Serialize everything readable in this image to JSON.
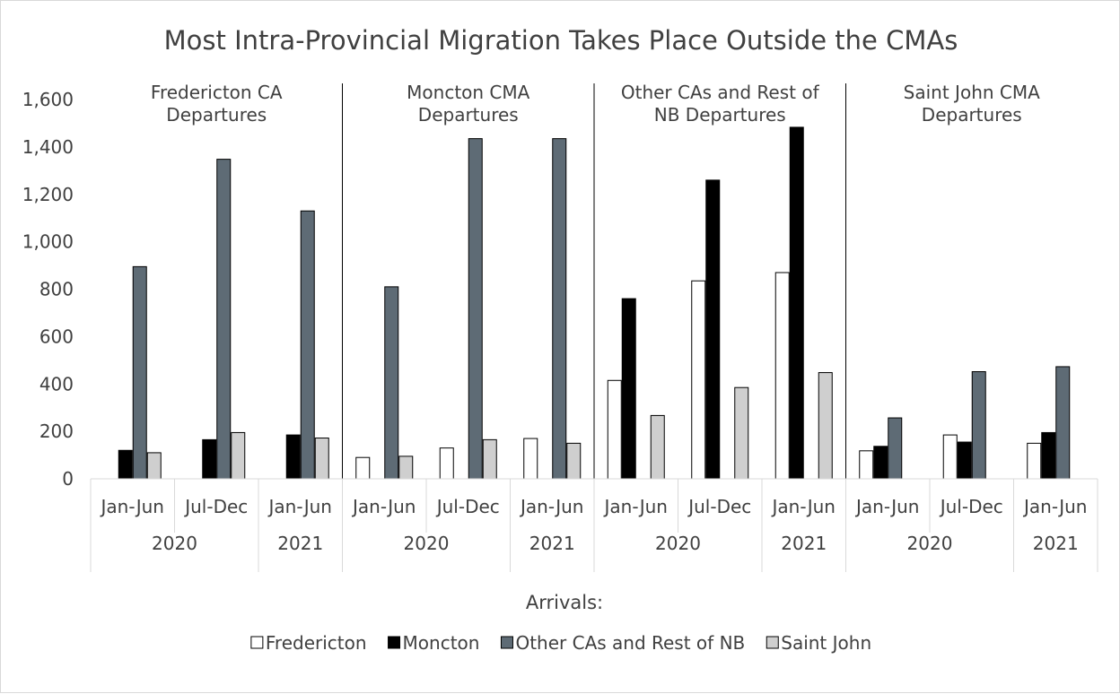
{
  "chart_data": {
    "type": "bar",
    "title": "Most Intra-Provincial Migration Takes Place Outside the CMAs",
    "xlabel": "Arrivals:",
    "ylabel": "",
    "ylim": [
      0,
      1600
    ],
    "yticks": [
      "0",
      "200",
      "400",
      "600",
      "800",
      "1,000",
      "1,200",
      "1,400",
      "1,600"
    ],
    "grid": false,
    "legend_position": "bottom",
    "series_colors": [
      "#ffffff",
      "#000000",
      "#5e6b75",
      "#cfcfcf"
    ],
    "series": [
      {
        "name": "Fredericton"
      },
      {
        "name": "Moncton"
      },
      {
        "name": "Other CAs and Rest of NB"
      },
      {
        "name": "Saint John"
      }
    ],
    "groups": [
      {
        "label_lines": [
          "Fredericton CA",
          "Departures"
        ],
        "years": [
          {
            "label": "2020",
            "span": 2
          },
          {
            "label": "2021",
            "span": 1
          }
        ],
        "periods": [
          {
            "label": "Jan-Jun",
            "values": [
              null,
              120,
              895,
              110
            ]
          },
          {
            "label": "Jul-Dec",
            "values": [
              null,
              165,
              1348,
              195
            ]
          },
          {
            "label": "Jan-Jun",
            "values": [
              null,
              185,
              1130,
              172
            ]
          }
        ]
      },
      {
        "label_lines": [
          "Moncton CMA",
          "Departures"
        ],
        "years": [
          {
            "label": "2020",
            "span": 2
          },
          {
            "label": "2021",
            "span": 1
          }
        ],
        "periods": [
          {
            "label": "Jan-Jun",
            "values": [
              90,
              null,
              810,
              95
            ]
          },
          {
            "label": "Jul-Dec",
            "values": [
              130,
              null,
              1435,
              165
            ]
          },
          {
            "label": "Jan-Jun",
            "values": [
              170,
              null,
              1435,
              150
            ]
          }
        ]
      },
      {
        "label_lines": [
          "Other CAs and Rest of",
          "NB Departures"
        ],
        "years": [
          {
            "label": "2020",
            "span": 2
          },
          {
            "label": "2021",
            "span": 1
          }
        ],
        "periods": [
          {
            "label": "Jan-Jun",
            "values": [
              415,
              760,
              null,
              267
            ]
          },
          {
            "label": "Jul-Dec",
            "values": [
              835,
              1260,
              null,
              385
            ]
          },
          {
            "label": "Jan-Jun",
            "values": [
              870,
              1483,
              null,
              448
            ]
          }
        ]
      },
      {
        "label_lines": [
          "Saint John CMA",
          "Departures"
        ],
        "years": [
          {
            "label": "2020",
            "span": 2
          },
          {
            "label": "2021",
            "span": 1
          }
        ],
        "periods": [
          {
            "label": "Jan-Jun",
            "values": [
              118,
              137,
              257,
              null
            ]
          },
          {
            "label": "Jul-Dec",
            "values": [
              185,
              155,
              452,
              null
            ]
          },
          {
            "label": "Jan-Jun",
            "values": [
              150,
              195,
              473,
              null
            ]
          }
        ]
      }
    ]
  }
}
